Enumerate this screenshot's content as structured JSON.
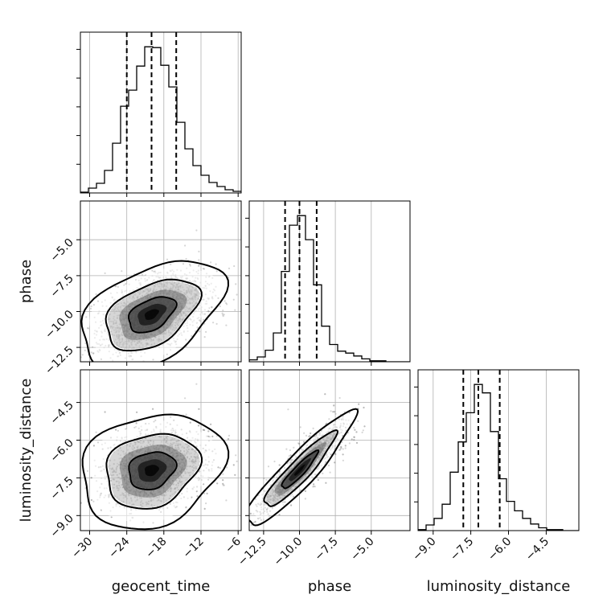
{
  "chart_data": {
    "type": "corner",
    "parameters": [
      "geocent_time",
      "phase",
      "luminosity_distance"
    ],
    "axis_labels": {
      "x": [
        "geocent_time",
        "phase",
        "luminosity_distance"
      ],
      "y": [
        "phase",
        "luminosity_distance"
      ]
    },
    "ranges": {
      "geocent_time": [
        -31.5,
        -5.5
      ],
      "phase": [
        -13.5,
        -2.3
      ],
      "luminosity_distance": [
        -9.6,
        -3.2
      ]
    },
    "ticks": {
      "geocent_time": {
        "values": [
          -30,
          -24,
          -18,
          -12,
          -6
        ],
        "labels": [
          "−30",
          "−24",
          "−18",
          "−12",
          "−6"
        ]
      },
      "phase": {
        "values": [
          -12.5,
          -10.0,
          -7.5,
          -5.0
        ],
        "labels": [
          "−12.5",
          "−10.0",
          "−7.5",
          "−5.0"
        ]
      },
      "luminosity_distance": {
        "values": [
          -9.0,
          -7.5,
          -6.0,
          -4.5
        ],
        "labels": [
          "−9.0",
          "−7.5",
          "−6.0",
          "−4.5"
        ]
      }
    },
    "quantiles": {
      "geocent_time": [
        -24.0,
        -20.0,
        -16.0
      ],
      "phase": [
        -11.0,
        -10.0,
        -8.8
      ],
      "luminosity_distance": [
        -7.8,
        -7.2,
        -6.35
      ]
    },
    "histograms": {
      "geocent_time": {
        "edges": [
          -31.5,
          -30.2,
          -28.9,
          -27.6,
          -26.3,
          -25.0,
          -23.7,
          -22.4,
          -21.1,
          -19.8,
          -18.5,
          -17.2,
          -15.9,
          -14.6,
          -13.3,
          -12.0,
          -10.7,
          -9.4,
          -8.1,
          -6.8,
          -5.5
        ],
        "counts": [
          1,
          6,
          12,
          28,
          62,
          108,
          128,
          158,
          182,
          181,
          159,
          132,
          88,
          55,
          34,
          22,
          13,
          8,
          4,
          2
        ]
      },
      "phase": {
        "edges": [
          -13.5,
          -12.94,
          -12.38,
          -11.82,
          -11.26,
          -10.7,
          -10.14,
          -9.58,
          -9.02,
          -8.46,
          -7.9,
          -7.34,
          -6.78,
          -6.22,
          -5.66,
          -5.1,
          -4.54,
          -3.98,
          -3.42,
          -2.86,
          -2.3
        ],
        "counts": [
          2,
          5,
          12,
          30,
          94,
          142,
          152,
          127,
          80,
          37,
          18,
          11,
          9,
          6,
          3,
          1,
          1,
          0,
          0,
          0
        ]
      },
      "luminosity_distance": {
        "edges": [
          -9.6,
          -9.28,
          -8.96,
          -8.64,
          -8.32,
          -8.0,
          -7.68,
          -7.36,
          -7.04,
          -6.72,
          -6.4,
          -6.08,
          -5.76,
          -5.44,
          -5.12,
          -4.8,
          -4.48,
          -4.16,
          -3.84,
          -3.52,
          -3.2
        ],
        "counts": [
          1,
          6,
          13,
          28,
          62,
          94,
          125,
          155,
          146,
          105,
          55,
          31,
          21,
          13,
          7,
          3,
          1,
          1,
          0,
          0
        ]
      }
    },
    "posterior_2d": [
      {
        "x": "geocent_time",
        "y": "phase",
        "mean": [
          -20.0,
          -10.2
        ],
        "sd": [
          3.8,
          1.25
        ],
        "corr": 0.45
      },
      {
        "x": "geocent_time",
        "y": "luminosity_distance",
        "mean": [
          -20.0,
          -7.2
        ],
        "sd": [
          3.8,
          0.75
        ],
        "corr": 0.2
      },
      {
        "x": "phase",
        "y": "luminosity_distance",
        "mean": [
          -10.0,
          -7.2
        ],
        "sd": [
          1.25,
          0.75
        ],
        "corr": 0.92
      }
    ],
    "contour_levels": [
      0.39,
      0.86,
      0.99
    ],
    "grid": true,
    "colors": {
      "ink": "#000000",
      "grid": "#b0b0b0",
      "points": "#808080"
    }
  }
}
